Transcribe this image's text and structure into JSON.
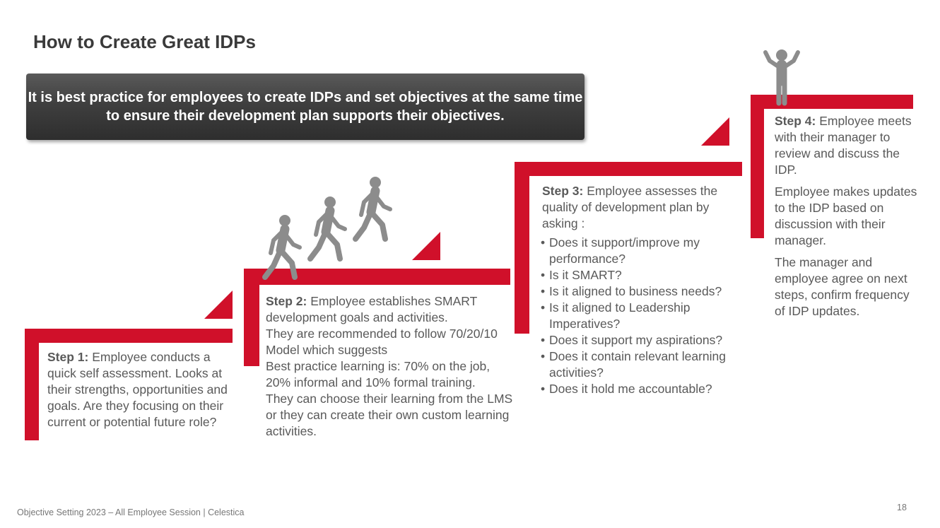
{
  "page": {
    "title": "How to Create Great IDPs",
    "callout": "It is best practice for employees to create IDPs and set objectives at the same time to ensure their development plan supports their objectives.",
    "footer": "Objective Setting 2023 – All Employee Session | Celestica",
    "page_number": "18"
  },
  "steps": [
    {
      "label": "Step 1:",
      "paragraphs": [
        "Employee conducts a quick self assessment. Looks at their strengths, opportunities and goals.  Are they focusing on their current or potential future role?"
      ]
    },
    {
      "label": "Step 2:",
      "lines": [
        "Employee establishes SMART development goals and activities.",
        "They are recommended to follow 70/20/10 Model which suggests",
        "Best practice learning is: 70% on the job, 20% informal and 10% formal training.",
        "They can choose their learning from the LMS or they can create their own custom learning activities."
      ]
    },
    {
      "label": "Step 3:",
      "intro": "Employee assesses the quality of development plan by asking :",
      "bullets": [
        "Does it support/improve my performance?",
        "Is it SMART?",
        "Is it aligned to business needs?",
        "Is it aligned to Leadership Imperatives?",
        "Does it support my aspirations?",
        "Does it contain relevant learning activities?",
        "Does it hold me accountable?"
      ]
    },
    {
      "label": "Step 4:",
      "paragraphs": [
        "Employee meets with their manager to review and discuss the IDP.",
        "Employee makes updates to the IDP based on discussion with their manager.",
        "The manager and employee agree on next steps, confirm frequency of  IDP updates."
      ]
    }
  ],
  "icons": {
    "walking": "walking-person-icon",
    "celebrating": "celebrating-person-icon"
  },
  "colors": {
    "accent": "#d0102a",
    "callout_bg": "#3f3f3f",
    "figure": "#8c8c8c"
  }
}
